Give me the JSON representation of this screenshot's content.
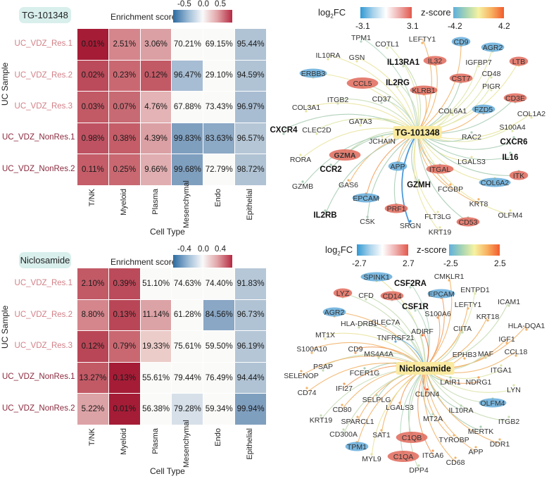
{
  "heatmaps": [
    {
      "drug": "TG-101348",
      "legend_title": "Enrichment score",
      "ticks": [
        "-0.5",
        "0.0",
        "0.5"
      ],
      "ylabel": "UC Sample",
      "xlabel": "Cell Type",
      "columns": [
        "T/NK",
        "Myeloid",
        "Plasma",
        "Mesenchymal",
        "Endo",
        "Epithelial"
      ],
      "rows": [
        {
          "label": "UC_VDZ_Res.1",
          "label_color": "#d27f86",
          "values": [
            "0.01%",
            "2.51%",
            "3.06%",
            "70.21%",
            "69.15%",
            "95.44%"
          ],
          "colors": [
            "#a51c36",
            "#d4868c",
            "#dba0a4",
            "#fafaf8",
            "#fafaf8",
            "#b0c3d4"
          ]
        },
        {
          "label": "UC_VDZ_Res.2",
          "label_color": "#d27f86",
          "values": [
            "0.02%",
            "0.23%",
            "0.12%",
            "96.47%",
            "29.10%",
            "94.59%"
          ],
          "colors": [
            "#bb4a5a",
            "#c96871",
            "#c25a66",
            "#a7bdd3",
            "#fafaf8",
            "#b0c3d4"
          ]
        },
        {
          "label": "UC_VDZ_Res.3",
          "label_color": "#d27f86",
          "values": [
            "0.03%",
            "0.07%",
            "4.76%",
            "67.88%",
            "73.43%",
            "96.97%"
          ],
          "colors": [
            "#c25a66",
            "#c86a73",
            "#e3b3b5",
            "#fafaf8",
            "#fafaf8",
            "#a9bdd2"
          ]
        },
        {
          "label": "UC_VDZ_NonRes.1",
          "label_color": "#8b2a3e",
          "values": [
            "0.98%",
            "0.38%",
            "4.39%",
            "99.83%",
            "83.63%",
            "96.57%"
          ],
          "colors": [
            "#bf5262",
            "#c45d68",
            "#dba0a4",
            "#7f9fbf",
            "#8ca9c6",
            "#b5c6d6"
          ]
        },
        {
          "label": "UC_VDZ_NonRes.2",
          "label_color": "#8b2a3e",
          "values": [
            "0.11%",
            "0.25%",
            "9.66%",
            "99.68%",
            "72.79%",
            "98.72%"
          ],
          "colors": [
            "#c45d68",
            "#c96871",
            "#e0aeb0",
            "#7f9fbf",
            "#fafaf8",
            "#b0c3d4"
          ]
        }
      ]
    },
    {
      "drug": "Niclosamide",
      "legend_title": "Enrichment score",
      "ticks": [
        "-0.4",
        "0.0",
        "0.4"
      ],
      "ylabel": "UC Sample",
      "xlabel": "Cell Type",
      "columns": [
        "T/NK",
        "Myeloid",
        "Plasma",
        "Mesenchymal",
        "Endo",
        "Epithelial"
      ],
      "rows": [
        {
          "label": "UC_VDZ_Res.1",
          "label_color": "#d27f86",
          "values": [
            "2.10%",
            "0.39%",
            "51.10%",
            "74.63%",
            "74.40%",
            "91.83%"
          ],
          "colors": [
            "#c25a66",
            "#bb4a5a",
            "#fafaf8",
            "#fafaf8",
            "#fafaf8",
            "#b6c7d7"
          ]
        },
        {
          "label": "UC_VDZ_Res.2",
          "label_color": "#d27f86",
          "values": [
            "8.80%",
            "0.13%",
            "11.14%",
            "61.28%",
            "84.56%",
            "96.73%"
          ],
          "colors": [
            "#d4868c",
            "#b94656",
            "#dca3a6",
            "#fafaf8",
            "#8aa7c5",
            "#b0c3d4"
          ]
        },
        {
          "label": "UC_VDZ_Res.3",
          "label_color": "#d27f86",
          "values": [
            "0.12%",
            "0.79%",
            "19.33%",
            "75.61%",
            "59.50%",
            "96.19%"
          ],
          "colors": [
            "#b94656",
            "#c96871",
            "#ecccc9",
            "#fafaf8",
            "#fafaf8",
            "#b5c6d6"
          ]
        },
        {
          "label": "UC_VDZ_NonRes.1",
          "label_color": "#8b2a3e",
          "values": [
            "13.27%",
            "0.13%",
            "55.61%",
            "79.44%",
            "76.49%",
            "94.44%"
          ],
          "colors": [
            "#c25a66",
            "#a51c36",
            "#fafaf8",
            "#fafaf8",
            "#fafaf8",
            "#b0c3d4"
          ]
        },
        {
          "label": "UC_VDZ_NonRes.2",
          "label_color": "#8b2a3e",
          "values": [
            "5.22%",
            "0.01%",
            "56.38%",
            "79.28%",
            "59.34%",
            "99.94%"
          ],
          "colors": [
            "#dca3a6",
            "#a51c36",
            "#fafaf8",
            "#d7e0e9",
            "#fafaf8",
            "#7f9fbf"
          ]
        }
      ]
    }
  ],
  "networks": [
    {
      "center": "TG-101348",
      "legend": {
        "fc_label": "log",
        "fc_sub": "2",
        "fc_suffix": "FC",
        "fc_min": "-3.1",
        "fc_max": "3.1",
        "z_label": "z-score",
        "z_min": "-4.2",
        "z_max": "4.2"
      },
      "nodes": [
        {
          "label": "TPM1",
          "type": "p",
          "edge": "#b8d8c4"
        },
        {
          "label": "COTL1",
          "type": "p",
          "edge": "#dfe6a8"
        },
        {
          "label": "LEFTY1",
          "type": "p",
          "edge": "#f2b46a"
        },
        {
          "label": "CD9",
          "type": "bl",
          "edge": "#f2b46a"
        },
        {
          "label": "AGR2",
          "type": "bl",
          "edge": "#dfe6a8"
        },
        {
          "label": "IL10RA",
          "type": "p",
          "edge": "#e9e4a0"
        },
        {
          "label": "GSN",
          "type": "p",
          "edge": "#e9e4a0"
        },
        {
          "label": "IL13RA1",
          "type": "b",
          "edge": "#c6dcb4"
        },
        {
          "label": "IL32",
          "type": "r",
          "edge": "#f2b46a"
        },
        {
          "label": "IGFBP7",
          "type": "p",
          "edge": "#dfe6a8"
        },
        {
          "label": "LTB",
          "type": "r",
          "edge": "#e9e4a0"
        },
        {
          "label": "ERBB3",
          "type": "bl",
          "edge": "#e9e4a0"
        },
        {
          "label": "CD48",
          "type": "p",
          "edge": "#dfe6a8"
        },
        {
          "label": "CCL5",
          "type": "r",
          "edge": "#c6dcb4"
        },
        {
          "label": "IL2RG",
          "type": "b",
          "edge": "#c6dcb4"
        },
        {
          "label": "CST7",
          "type": "r",
          "edge": "#a8cdb4"
        },
        {
          "label": "PIGR",
          "type": "p",
          "edge": "#dfe6a8"
        },
        {
          "label": "KLRB1",
          "type": "r",
          "edge": "#f2b46a"
        },
        {
          "label": "ITGB2",
          "type": "p",
          "edge": "#c6dcb4"
        },
        {
          "label": "CD37",
          "type": "p",
          "edge": "#b8d8c4"
        },
        {
          "label": "CD3E",
          "type": "r",
          "edge": "#a8cdb4"
        },
        {
          "label": "COL3A1",
          "type": "p",
          "edge": "#e9e4a0"
        },
        {
          "label": "COL6A1",
          "type": "p",
          "edge": "#dfe6a8"
        },
        {
          "label": "FZD5",
          "type": "bl",
          "edge": "#f2b46a"
        },
        {
          "label": "COL1A2",
          "type": "p",
          "edge": "#e9e4a0"
        },
        {
          "label": "GATA3",
          "type": "p",
          "edge": "#e9e4a0"
        },
        {
          "label": "S100A4",
          "type": "p",
          "edge": "#dfe6a8"
        },
        {
          "label": "CXCR4",
          "type": "b",
          "edge": "#a8cdb4"
        },
        {
          "label": "CLEC2D",
          "type": "p",
          "edge": "#dfe6a8"
        },
        {
          "label": "JCHAIN",
          "type": "p",
          "edge": "#e9e4a0"
        },
        {
          "label": "RAC2",
          "type": "p",
          "edge": "#a8cdb4"
        },
        {
          "label": "CXCR6",
          "type": "b",
          "edge": "#a8cdb4"
        },
        {
          "label": "GZMA",
          "type": "r",
          "edge": "#c6dcb4"
        },
        {
          "label": "IL16",
          "type": "b",
          "edge": "#a8cdb4"
        },
        {
          "label": "RORA",
          "type": "p",
          "edge": "#e9e4a0"
        },
        {
          "label": "CCR2",
          "type": "b",
          "edge": "#a8cdb4"
        },
        {
          "label": "APP",
          "type": "bl",
          "edge": "#f2b46a"
        },
        {
          "label": "ITGAL",
          "type": "r",
          "edge": "#a8cdb4"
        },
        {
          "label": "LGALS3",
          "type": "p",
          "edge": "#e9e4a0"
        },
        {
          "label": "ITK",
          "type": "r",
          "edge": "#a8cdb4"
        },
        {
          "label": "GZMB",
          "type": "p",
          "edge": "#a8cdb4"
        },
        {
          "label": "GAS6",
          "type": "p",
          "edge": "#f2b46a"
        },
        {
          "label": "GZMH",
          "type": "b",
          "edge": "#a8cdb4"
        },
        {
          "label": "COL6A2",
          "type": "bl",
          "edge": "#e9e4a0"
        },
        {
          "label": "FCGBP",
          "type": "p",
          "edge": "#f2b46a"
        },
        {
          "label": "EPCAM",
          "type": "bl",
          "edge": "#f2a060"
        },
        {
          "label": "KRT8",
          "type": "p",
          "edge": "#f2b46a"
        },
        {
          "label": "IL2RB",
          "type": "b",
          "edge": "#a8cdb4"
        },
        {
          "label": "PRF1",
          "type": "r",
          "edge": "#a8cdb4"
        },
        {
          "label": "OLFM4",
          "type": "p",
          "edge": "#e9e4a0"
        },
        {
          "label": "FLT3LG",
          "type": "p",
          "edge": "#e9e4a0"
        },
        {
          "label": "CSK",
          "type": "p",
          "edge": "#a8cdb4"
        },
        {
          "label": "CD53",
          "type": "r",
          "edge": "#a8cdb4"
        },
        {
          "label": "SRGN",
          "type": "p",
          "edge": "#3d8fd6"
        },
        {
          "label": "KRT19",
          "type": "p",
          "edge": "#e9e4a0"
        }
      ]
    },
    {
      "center": "Niclosamide",
      "legend": {
        "fc_label": "log",
        "fc_sub": "2",
        "fc_suffix": "FC",
        "fc_min": "-2.7",
        "fc_max": "2.7",
        "z_label": "z-score",
        "z_min": "-2.5",
        "z_max": "2.5"
      },
      "nodes": [
        {
          "label": "SPINK1",
          "type": "bl",
          "edge": "#e9e4a0"
        },
        {
          "label": "CSF2RA",
          "type": "b",
          "edge": "#b8d8c4"
        },
        {
          "label": "CMKLR1",
          "type": "p",
          "edge": "#f2b46a"
        },
        {
          "label": "LYZ",
          "type": "r",
          "edge": "#c6dcb4"
        },
        {
          "label": "CFD",
          "type": "p",
          "edge": "#c6dcb4"
        },
        {
          "label": "CD14",
          "type": "r",
          "edge": "#b8d8c4"
        },
        {
          "label": "EPCAM",
          "type": "bl",
          "edge": "#f2a060"
        },
        {
          "label": "ENTPD1",
          "type": "p",
          "edge": "#dfe6a8"
        },
        {
          "label": "CSF1R",
          "type": "b",
          "edge": "#b8d8c4"
        },
        {
          "label": "LEFTY1",
          "type": "p",
          "edge": "#f2b46a"
        },
        {
          "label": "ICAM1",
          "type": "p",
          "edge": "#c6dcb4"
        },
        {
          "label": "AGR2",
          "type": "bl",
          "edge": "#f2b46a"
        },
        {
          "label": "S100A6",
          "type": "p",
          "edge": "#f2a060"
        },
        {
          "label": "KRT18",
          "type": "p",
          "edge": "#f2b46a"
        },
        {
          "label": "HLA-DRB1",
          "type": "p",
          "edge": "#c6dcb4"
        },
        {
          "label": "CLEC7A",
          "type": "p",
          "edge": "#b8d8c4"
        },
        {
          "label": "HLA-DQA1",
          "type": "p",
          "edge": "#f2b46a"
        },
        {
          "label": "CIITA",
          "type": "p",
          "edge": "#c6dcb4"
        },
        {
          "label": "ADIRF",
          "type": "p",
          "edge": "#f0703a"
        },
        {
          "label": "MT1X",
          "type": "p",
          "edge": "#e9e4a0"
        },
        {
          "label": "TNFRSF21",
          "type": "p",
          "edge": "#6aaee0"
        },
        {
          "label": "IGF1",
          "type": "p",
          "edge": "#f2b46a"
        },
        {
          "label": "S100A10",
          "type": "p",
          "edge": "#f2b46a"
        },
        {
          "label": "CD9",
          "type": "p",
          "edge": "#f2a060"
        },
        {
          "label": "MS4A4A",
          "type": "p",
          "edge": "#c6dcb4"
        },
        {
          "label": "EPHB3",
          "type": "p",
          "edge": "#f2b46a"
        },
        {
          "label": "MAF",
          "type": "p",
          "edge": "#c6dcb4"
        },
        {
          "label": "CCL18",
          "type": "p",
          "edge": "#f2b46a"
        },
        {
          "label": "PSAP",
          "type": "p",
          "edge": "#c6dcb4"
        },
        {
          "label": "ITGA1",
          "type": "p",
          "edge": "#dfe6a8"
        },
        {
          "label": "SELENOP",
          "type": "p",
          "edge": "#f2b46a"
        },
        {
          "label": "FCER1G",
          "type": "p",
          "edge": "#a8cdb4"
        },
        {
          "label": "LAIR1",
          "type": "p",
          "edge": "#a8cdb4"
        },
        {
          "label": "NDRG1",
          "type": "p",
          "edge": "#f2a060"
        },
        {
          "label": "LYN",
          "type": "p",
          "edge": "#dfe6a8"
        },
        {
          "label": "CD74",
          "type": "p",
          "edge": "#f2b46a"
        },
        {
          "label": "IFI27",
          "type": "p",
          "edge": "#f2a060"
        },
        {
          "label": "CLDN4",
          "type": "p",
          "edge": "#e8452c"
        },
        {
          "label": "SELPLG",
          "type": "p",
          "edge": "#a8cdb4"
        },
        {
          "label": "OLFM4",
          "type": "bl",
          "edge": "#c6dcb4"
        },
        {
          "label": "CD80",
          "type": "p",
          "edge": "#f2b46a"
        },
        {
          "label": "LGALS3",
          "type": "p",
          "edge": "#f2a060"
        },
        {
          "label": "IL10RA",
          "type": "p",
          "edge": "#a8cdb4"
        },
        {
          "label": "MT2A",
          "type": "p",
          "edge": "#b8d8c4"
        },
        {
          "label": "KRT19",
          "type": "p",
          "edge": "#c6dcb4"
        },
        {
          "label": "SPARCL1",
          "type": "p",
          "edge": "#f2b46a"
        },
        {
          "label": "ITGB2",
          "type": "p",
          "edge": "#c6dcb4"
        },
        {
          "label": "CD300A",
          "type": "p",
          "edge": "#c6dcb4"
        },
        {
          "label": "SAT1",
          "type": "p",
          "edge": "#f2b46a"
        },
        {
          "label": "C1QB",
          "type": "r",
          "edge": "#a8cdb4"
        },
        {
          "label": "MERTK",
          "type": "p",
          "edge": "#a8cdb4"
        },
        {
          "label": "TYROBP",
          "type": "p",
          "edge": "#f2b46a"
        },
        {
          "label": "DDR1",
          "type": "p",
          "edge": "#f2b46a"
        },
        {
          "label": "TPM1",
          "type": "bl",
          "edge": "#f2b46a"
        },
        {
          "label": "APP",
          "type": "p",
          "edge": "#f2b46a"
        },
        {
          "label": "MYL9",
          "type": "p",
          "edge": "#e9e4a0"
        },
        {
          "label": "C1QA",
          "type": "r",
          "edge": "#b8d8c4"
        },
        {
          "label": "ITGA6",
          "type": "p",
          "edge": "#f2a060"
        },
        {
          "label": "CD68",
          "type": "p",
          "edge": "#f2b46a"
        },
        {
          "label": "DPP4",
          "type": "p",
          "edge": "#c6dcb4"
        }
      ]
    }
  ]
}
